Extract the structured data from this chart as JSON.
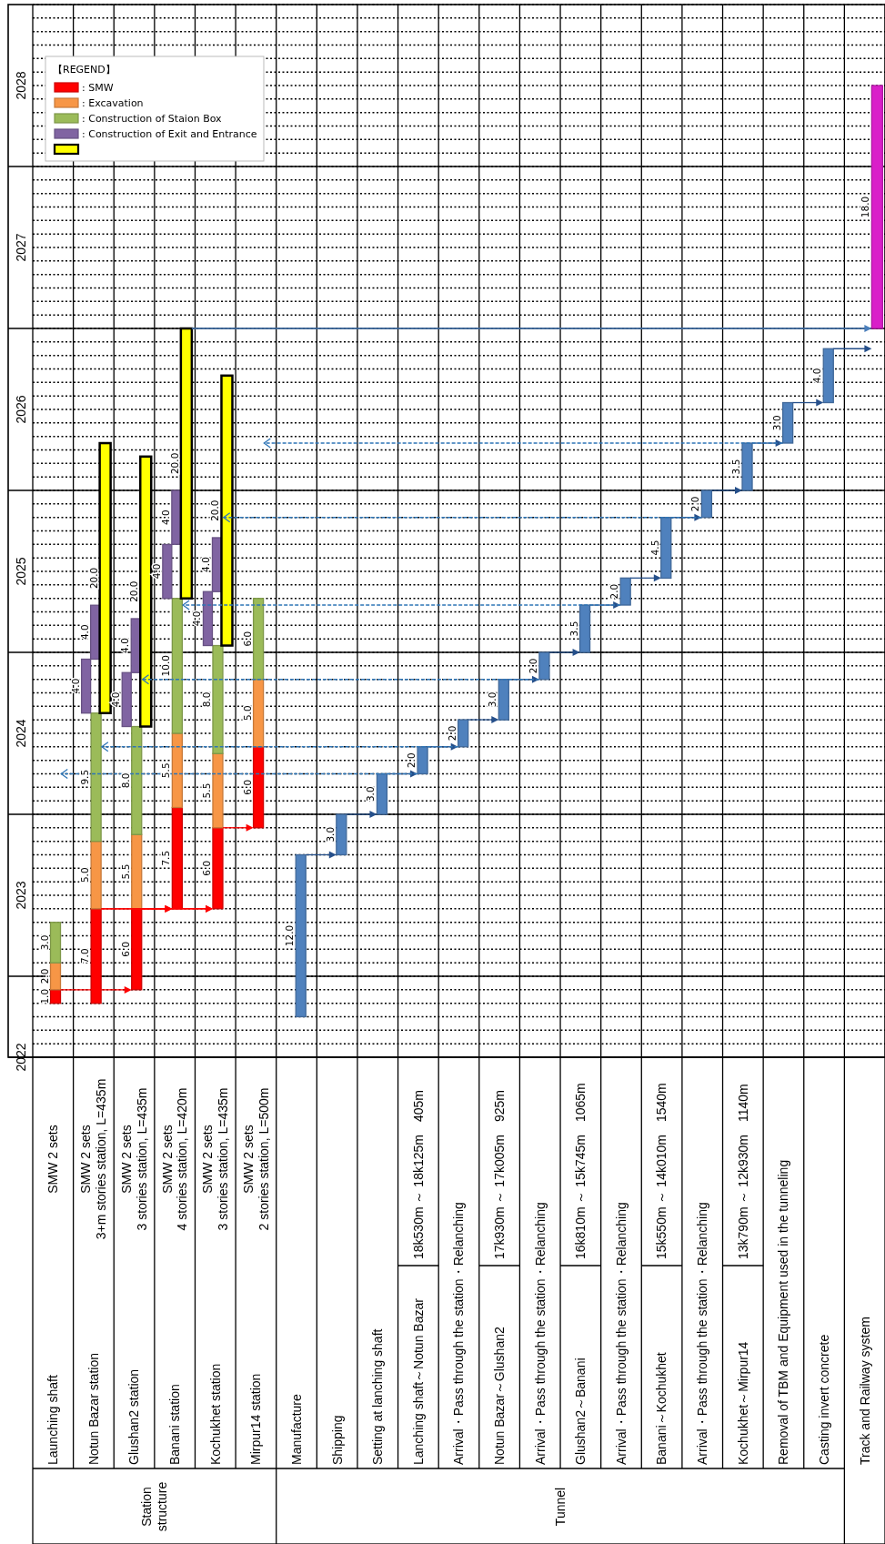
{
  "chart_data": {
    "type": "bar",
    "categories": [
      "Launching shaft",
      "Notun Bazar station",
      "Glushan2 station",
      "Banani station",
      "Kochukhet station",
      "Mirpur14 station",
      "Manufacture",
      "Shipping",
      "Setting at lanching shaft",
      "Lanching shaft～Notun Bazar",
      "Arrival・Pass through the station・Relanching",
      "Notun Bazar～Glushan2",
      "Arrival・Pass through the station・Relanching",
      "Glushan2～Banani",
      "Arrival・Pass through the station・Relanching",
      "Banani～Kochukhet",
      "Arrival・Pass through the station・Relanching",
      "Kochukhet～Mirpur14",
      "Removal of TBM and Equipment used in the tunneling",
      "Casting invert concrete",
      "Track and Railway system"
    ],
    "series": [
      {
        "name": ": SMW",
        "color": "#ff0000",
        "base": [
          2022.333,
          2022.333,
          2022.417,
          2022.917,
          2022.917,
          2023.417,
          null,
          null,
          null,
          null,
          null,
          null,
          null,
          null,
          null,
          null,
          null,
          null,
          null,
          null,
          null
        ],
        "values": [
          0.083,
          0.583,
          0.5,
          0.625,
          0.5,
          0.5,
          null,
          null,
          null,
          null,
          null,
          null,
          null,
          null,
          null,
          null,
          null,
          null,
          null,
          null,
          null
        ]
      },
      {
        "name": ": Excavation",
        "color": "#f79646",
        "base": [
          2022.417,
          2022.917,
          2022.917,
          2023.542,
          2023.417,
          2023.917,
          null,
          null,
          null,
          null,
          null,
          null,
          null,
          null,
          null,
          null,
          null,
          null,
          null,
          null,
          null
        ],
        "values": [
          0.167,
          0.417,
          0.458,
          0.458,
          0.458,
          0.417,
          null,
          null,
          null,
          null,
          null,
          null,
          null,
          null,
          null,
          null,
          null,
          null,
          null,
          null,
          null
        ]
      },
      {
        "name": ": Construction of Staion Box",
        "color": "#9bbb59",
        "base": [
          2022.583,
          2023.333,
          2023.375,
          2024,
          2023.875,
          2024.333,
          null,
          null,
          null,
          null,
          null,
          null,
          null,
          null,
          null,
          null,
          null,
          null,
          null,
          null,
          null
        ],
        "values": [
          0.25,
          0.792,
          0.667,
          0.833,
          0.667,
          0.5,
          null,
          null,
          null,
          null,
          null,
          null,
          null,
          null,
          null,
          null,
          null,
          null,
          null,
          null,
          null
        ]
      },
      {
        "name": ": Construction of Exit and Entrance",
        "color": "#8064a2",
        "base": [
          null,
          2024.125,
          2024.042,
          2024.833,
          2024.542,
          null,
          null,
          null,
          null,
          null,
          null,
          null,
          null,
          null,
          null,
          null,
          null,
          null,
          null,
          null,
          null
        ],
        "values": [
          null,
          0.333,
          0.333,
          0.333,
          0.333,
          null,
          null,
          null,
          null,
          null,
          null,
          null,
          null,
          null,
          null,
          null,
          null,
          null,
          null,
          null,
          null
        ]
      },
      {
        "color": "#8064a2",
        "base": [
          null,
          2024.458,
          2024.375,
          2025.167,
          2024.875,
          null,
          null,
          null,
          null,
          null,
          null,
          null,
          null,
          null,
          null,
          null,
          null,
          null,
          null,
          null,
          null
        ],
        "values": [
          null,
          0.333,
          0.333,
          0.333,
          0.333,
          null,
          null,
          null,
          null,
          null,
          null,
          null,
          null,
          null,
          null,
          null,
          null,
          null,
          null,
          null,
          null
        ]
      },
      {
        "name": null,
        "color": "#ffff00",
        "base": [
          null,
          2024.125,
          2024.042,
          2024.833,
          2024.542,
          null,
          null,
          null,
          null,
          null,
          null,
          null,
          null,
          null,
          null,
          null,
          null,
          null,
          null,
          null,
          null
        ],
        "values": [
          null,
          1.667,
          1.667,
          1.667,
          1.667,
          null,
          null,
          null,
          null,
          null,
          null,
          null,
          null,
          null,
          null,
          null,
          null,
          null,
          null,
          null,
          null
        ]
      },
      {
        "color": "#4f81bd",
        "base": [
          null,
          null,
          null,
          null,
          null,
          null,
          2022.25,
          2023.25,
          2023.5,
          2023.75,
          2023.917,
          2024.083,
          2024.333,
          2024.5,
          2024.792,
          2024.958,
          2025.333,
          2025.5,
          2025.792,
          2026.042,
          null
        ],
        "values": [
          null,
          null,
          null,
          null,
          null,
          null,
          1,
          0.25,
          0.25,
          0.167,
          0.167,
          0.25,
          0.167,
          0.292,
          0.167,
          0.375,
          0.167,
          0.292,
          0.25,
          0.333,
          null
        ]
      },
      {
        "color": "#d91fc9",
        "base": [
          null,
          null,
          null,
          null,
          null,
          null,
          null,
          null,
          null,
          null,
          null,
          null,
          null,
          null,
          null,
          null,
          null,
          null,
          null,
          null,
          2026.5
        ],
        "values": [
          null,
          null,
          null,
          null,
          null,
          null,
          null,
          null,
          null,
          null,
          null,
          null,
          null,
          null,
          null,
          null,
          null,
          null,
          null,
          null,
          1.5
        ]
      }
    ],
    "ylim": [
      2022,
      2028.5
    ],
    "yticks": [
      2022,
      {
        "value": 2022.083,
        "label": null
      },
      {
        "value": 2022.167,
        "label": null
      },
      {
        "value": 2022.25,
        "label": null
      },
      {
        "value": 2022.333,
        "label": null
      },
      {
        "value": 2022.417,
        "label": null
      },
      {
        "value": 2022.5,
        "label": null
      },
      {
        "value": 2022.583,
        "label": null
      },
      {
        "value": 2022.667,
        "label": null
      },
      {
        "value": 2022.75,
        "label": null
      },
      {
        "value": 2022.833,
        "label": null
      },
      {
        "value": 2022.917,
        "label": null
      },
      2023,
      {
        "value": 2023.083,
        "label": null
      },
      {
        "value": 2023.167,
        "label": null
      },
      {
        "value": 2023.25,
        "label": null
      },
      {
        "value": 2023.333,
        "label": null
      },
      {
        "value": 2023.417,
        "label": null
      },
      {
        "value": 2023.5,
        "label": null
      },
      {
        "value": 2023.583,
        "label": null
      },
      {
        "value": 2023.667,
        "label": null
      },
      {
        "value": 2023.75,
        "label": null
      },
      {
        "value": 2023.833,
        "label": null
      },
      {
        "value": 2023.917,
        "label": null
      },
      2024,
      {
        "value": 2024.083,
        "label": null
      },
      {
        "value": 2024.167,
        "label": null
      },
      {
        "value": 2024.25,
        "label": null
      },
      {
        "value": 2024.333,
        "label": null
      },
      {
        "value": 2024.417,
        "label": null
      },
      {
        "value": 2024.5,
        "label": null
      },
      {
        "value": 2024.583,
        "label": null
      },
      {
        "value": 2024.667,
        "label": null
      },
      {
        "value": 2024.75,
        "label": null
      },
      {
        "value": 2024.833,
        "label": null
      },
      {
        "value": 2024.917,
        "label": null
      },
      2025,
      {
        "value": 2025.083,
        "label": null
      },
      {
        "value": 2025.167,
        "label": null
      },
      {
        "value": 2025.25,
        "label": null
      },
      {
        "value": 2025.333,
        "label": null
      },
      {
        "value": 2025.417,
        "label": null
      },
      {
        "value": 2025.5,
        "label": null
      },
      {
        "value": 2025.583,
        "label": null
      },
      {
        "value": 2025.667,
        "label": null
      },
      {
        "value": 2025.75,
        "label": null
      },
      {
        "value": 2025.833,
        "label": null
      },
      {
        "value": 2025.917,
        "label": null
      },
      2026,
      {
        "value": 2026.083,
        "label": null
      },
      {
        "value": 2026.167,
        "label": null
      },
      {
        "value": 2026.25,
        "label": null
      },
      {
        "value": 2026.333,
        "label": null
      },
      {
        "value": 2026.417,
        "label": null
      },
      {
        "value": 2026.5,
        "label": null
      },
      {
        "value": 2026.583,
        "label": null
      },
      {
        "value": 2026.667,
        "label": null
      },
      {
        "value": 2026.75,
        "label": null
      },
      {
        "value": 2026.833,
        "label": null
      },
      {
        "value": 2026.917,
        "label": null
      },
      2027,
      {
        "value": 2027.083,
        "label": null
      },
      {
        "value": 2027.167,
        "label": null
      },
      {
        "value": 2027.25,
        "label": null
      },
      {
        "value": 2027.333,
        "label": null
      },
      {
        "value": 2027.417,
        "label": null
      },
      {
        "value": 2027.5,
        "label": null
      },
      {
        "value": 2027.583,
        "label": null
      },
      {
        "value": 2027.667,
        "label": null
      },
      {
        "value": 2027.75,
        "label": null
      },
      {
        "value": 2027.833,
        "label": null
      },
      {
        "value": 2027.917,
        "label": null
      },
      2028,
      {
        "value": 2028.083,
        "label": null
      },
      {
        "value": 2028.167,
        "label": null
      },
      {
        "value": 2028.25,
        "label": null
      },
      {
        "value": 2028.333,
        "label": null
      },
      {
        "value": 2028.417,
        "label": null
      },
      {
        "value": 2028.5,
        "label": null
      }
    ],
    "grid": "y",
    "legend": "top left",
    "legend_title": "【REGEND】",
    "annotations": [
      "Station\nstructure",
      "Tunnel",
      "SMW 2 sets",
      "SMW 2 sets\n3+m stories station, L=435m",
      "SMW 2 sets\n3 stories station, L=435m",
      "SMW 2 sets\n4 stories station, L=420m",
      "SMW 2 sets\n3 stories station, L=435m",
      "SMW 2 sets\n2 stories station, L=500m",
      "18k530m ～ 18k125m　405m",
      "17k930m ～ 17k005m　925m",
      "16k810m ～ 15k745m　1065m",
      "15k550m ～ 14k010m　1540m",
      "13k790m ～ 12k930m　1140m",
      "20.0",
      "20.0",
      "20.0",
      "20.0",
      "2.0",
      "2.0",
      "2.0",
      "18.0",
      {
        "text": "1.0",
        "x": "Launching shaft",
        "y": 2022.375
      },
      {
        "text": "2.0",
        "x": "Launching shaft",
        "y": 2022.5
      },
      {
        "text": "3.0",
        "x": "Launching shaft",
        "y": 2022.708
      },
      {
        "text": "7.0",
        "x": "Notun Bazar station",
        "y": 2022.625
      },
      {
        "text": "5.0",
        "x": "Notun Bazar station",
        "y": 2023.125
      },
      {
        "text": "9.5",
        "x": "Notun Bazar station",
        "y": 2023.729
      },
      {
        "text": "4.0",
        "x": "Notun Bazar station",
        "y": 2024.292
      },
      {
        "text": "4.0",
        "x": "Notun Bazar station",
        "y": 2024.625
      },
      {
        "text": "6.0",
        "x": "Glushan2 station",
        "y": 2022.667
      },
      {
        "text": "5.5",
        "x": "Glushan2 station",
        "y": 2023.146
      },
      {
        "text": "8.0",
        "x": "Glushan2 station",
        "y": 2023.708
      },
      {
        "text": "4.0",
        "x": "Glushan2 station",
        "y": 2024.208
      },
      {
        "text": "4.0",
        "x": "Glushan2 station",
        "y": 2024.542
      },
      {
        "text": "7.5",
        "x": "Banani station",
        "y": 2023.229
      },
      {
        "text": "5.5",
        "x": "Banani station",
        "y": 2023.771
      },
      {
        "text": "10.0",
        "x": "Banani station",
        "y": 2024.417
      },
      {
        "text": "4.0",
        "x": "Banani station",
        "y": 2025
      },
      {
        "text": "4.0",
        "x": "Banani station",
        "y": 2025.333
      },
      {
        "text": "6.0",
        "x": "Kochukhet station",
        "y": 2023.167
      },
      {
        "text": "5.5",
        "x": "Kochukhet station",
        "y": 2023.646
      },
      {
        "text": "8.0",
        "x": "Kochukhet station",
        "y": 2024.208
      },
      {
        "text": "4.0",
        "x": "Kochukhet station",
        "y": 2024.708
      },
      {
        "text": "4.0",
        "x": "Kochukhet station",
        "y": 2025.042
      },
      {
        "text": "6.0",
        "x": "Mirpur14 station",
        "y": 2023.667
      },
      {
        "text": "5.0",
        "x": "Mirpur14 station",
        "y": 2024.125
      },
      {
        "text": "6.0",
        "x": "Mirpur14 station",
        "y": 2024.583
      },
      {
        "text": "12.0",
        "x": "Manufacture",
        "y": 2022.75
      },
      {
        "text": "3.0",
        "x": "Shipping",
        "y": 2023.375
      },
      {
        "text": "3.0",
        "x": "Setting at lanching shaft",
        "y": 2023.625
      },
      {
        "text": "2.0",
        "x": "Lanching shaft～Notun Bazar",
        "y": 2023.833
      },
      {
        "text": "2.0",
        "x": "Arrival・Pass through the station・Relanching",
        "y": 2024
      },
      {
        "text": "3.0",
        "x": "Notun Bazar～Glushan2",
        "y": 2024.208
      },
      {
        "text": "3.5",
        "x": "Glushan2～Banani",
        "y": 2024.646
      },
      {
        "text": "4.5",
        "x": "Banani～Kochukhet",
        "y": 2025.146
      },
      {
        "text": "3.5",
        "x": "Kochukhet～Mirpur14",
        "y": 2025.646
      },
      {
        "text": "3.0",
        "x": "Removal of TBM and Equipment used in the tunneling",
        "y": 2025.917
      },
      {
        "text": "4.0",
        "x": "Casting invert concrete",
        "y": 2026.208
      }
    ]
  }
}
